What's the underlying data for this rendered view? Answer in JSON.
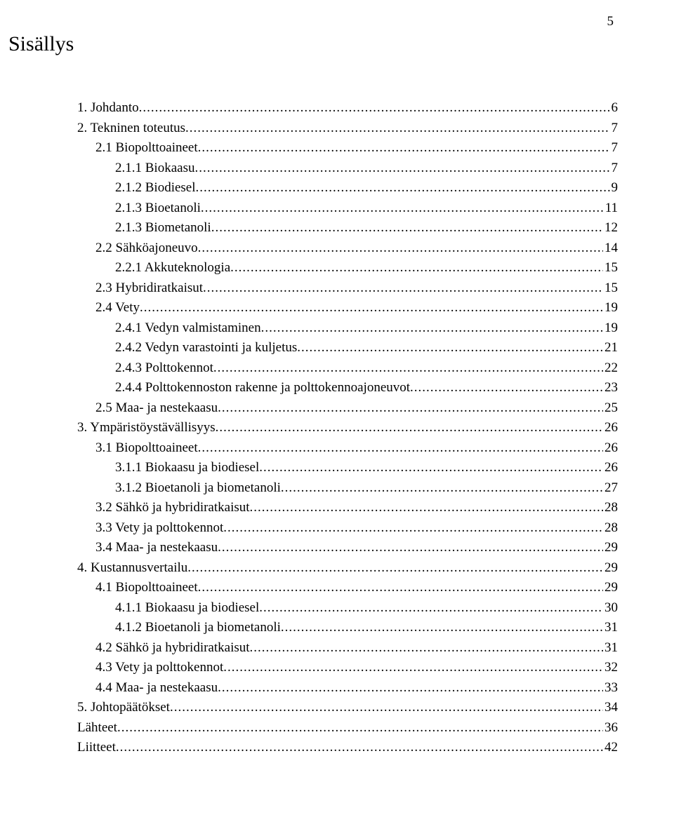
{
  "page_number": "5",
  "title": "Sisällys",
  "font": {
    "body_size_pt": 14,
    "title_size_pt": 22,
    "family": "Times New Roman",
    "color": "#000000"
  },
  "background_color": "#ffffff",
  "toc": [
    {
      "label": "1. Johdanto",
      "page": "6",
      "indent": 0
    },
    {
      "label": "2. Tekninen toteutus",
      "page": "7",
      "indent": 0
    },
    {
      "label": "2.1 Biopolttoaineet",
      "page": "7",
      "indent": 1
    },
    {
      "label": "2.1.1 Biokaasu",
      "page": "7",
      "indent": 2
    },
    {
      "label": "2.1.2 Biodiesel",
      "page": "9",
      "indent": 2
    },
    {
      "label": "2.1.3 Bioetanoli",
      "page": "11",
      "indent": 2
    },
    {
      "label": "2.1.3 Biometanoli",
      "page": "12",
      "indent": 2
    },
    {
      "label": "2.2 Sähköajoneuvo",
      "page": "14",
      "indent": 1
    },
    {
      "label": "2.2.1 Akkuteknologia",
      "page": "15",
      "indent": 2
    },
    {
      "label": "2.3 Hybridiratkaisut",
      "page": "15",
      "indent": 1
    },
    {
      "label": "2.4 Vety",
      "page": "19",
      "indent": 1
    },
    {
      "label": "2.4.1 Vedyn valmistaminen",
      "page": "19",
      "indent": 2
    },
    {
      "label": "2.4.2 Vedyn varastointi ja kuljetus",
      "page": "21",
      "indent": 2
    },
    {
      "label": "2.4.3 Polttokennot",
      "page": "22",
      "indent": 2
    },
    {
      "label": "2.4.4 Polttokennoston rakenne ja polttokennoajoneuvot",
      "page": "23",
      "indent": 2
    },
    {
      "label": "2.5 Maa- ja nestekaasu",
      "page": "25",
      "indent": 1
    },
    {
      "label": "3. Ympäristöystävällisyys",
      "page": "26",
      "indent": 0
    },
    {
      "label": "3.1 Biopolttoaineet",
      "page": "26",
      "indent": 1
    },
    {
      "label": "3.1.1 Biokaasu ja biodiesel",
      "page": "26",
      "indent": 2
    },
    {
      "label": "3.1.2 Bioetanoli ja biometanoli",
      "page": "27",
      "indent": 2
    },
    {
      "label": "3.2 Sähkö ja hybridiratkaisut",
      "page": "28",
      "indent": 1
    },
    {
      "label": "3.3 Vety ja polttokennot",
      "page": "28",
      "indent": 1
    },
    {
      "label": "3.4 Maa- ja nestekaasu",
      "page": "29",
      "indent": 1
    },
    {
      "label": "4. Kustannusvertailu",
      "page": "29",
      "indent": 0
    },
    {
      "label": "4.1 Biopolttoaineet",
      "page": "29",
      "indent": 1
    },
    {
      "label": "4.1.1 Biokaasu ja biodiesel",
      "page": "30",
      "indent": 2
    },
    {
      "label": "4.1.2 Bioetanoli ja biometanoli",
      "page": "31",
      "indent": 2
    },
    {
      "label": "4.2 Sähkö ja hybridiratkaisut",
      "page": "31",
      "indent": 1
    },
    {
      "label": "4.3 Vety ja polttokennot",
      "page": "32",
      "indent": 1
    },
    {
      "label": "4.4 Maa- ja nestekaasu",
      "page": "33",
      "indent": 1
    },
    {
      "label": "5. Johtopäätökset",
      "page": "34",
      "indent": 0
    },
    {
      "label": "Lähteet",
      "page": "36",
      "indent": 0
    },
    {
      "label": "Liitteet",
      "page": "42",
      "indent": 0
    }
  ]
}
